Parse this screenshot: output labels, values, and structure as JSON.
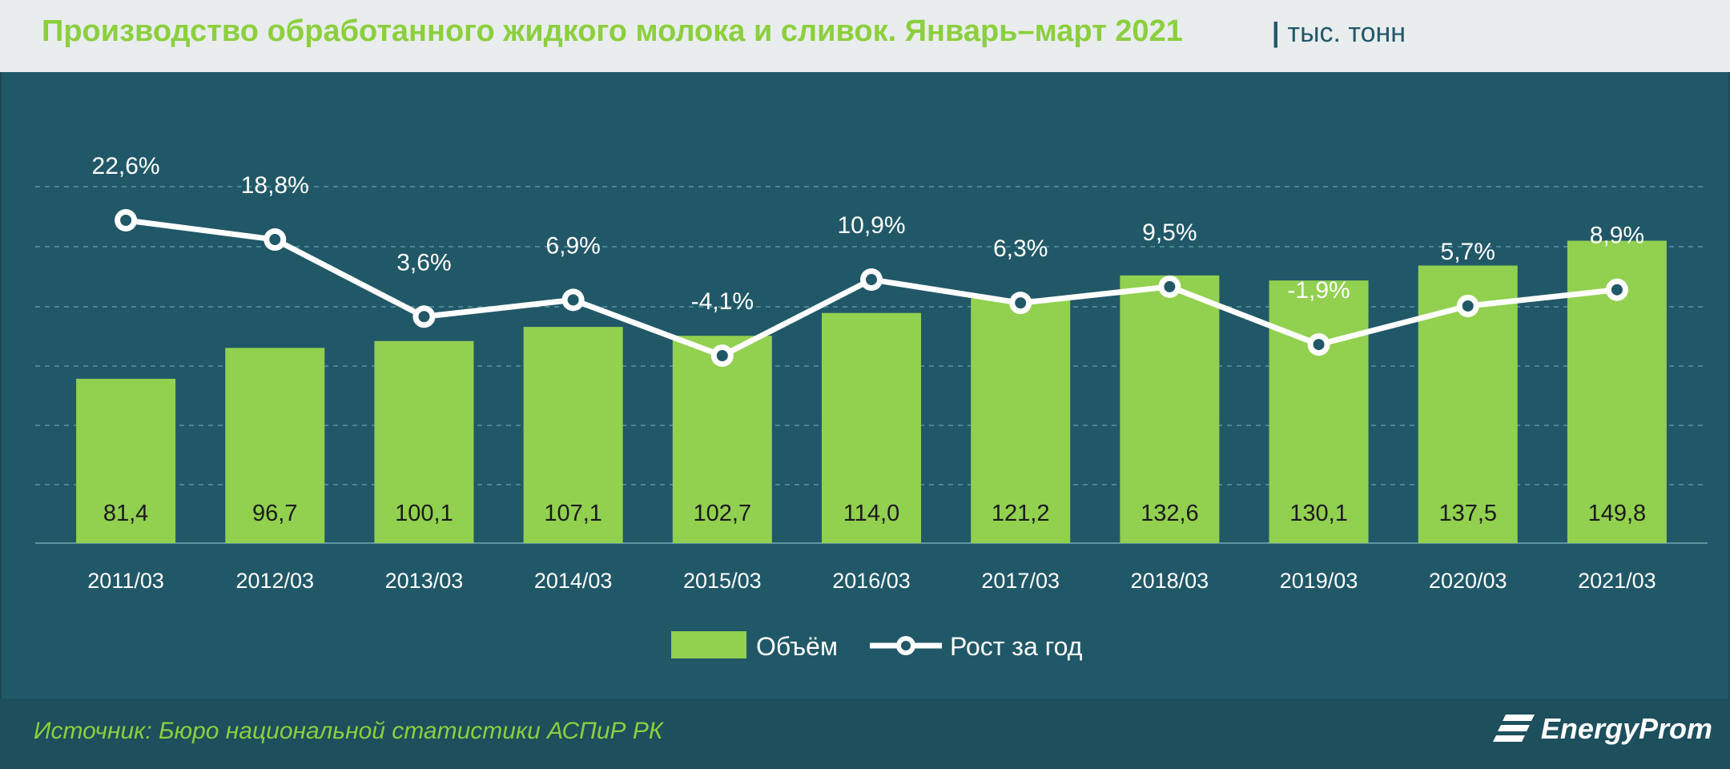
{
  "title": "Производство обработанного жидкого молока и сливок. Январь–март 2021",
  "unit_separator": "|",
  "unit": "тыс. тонн",
  "source": "Источник: Бюро национальной  статистики АСПиР РК",
  "brand": "EnergyProm",
  "colors": {
    "background": "#215868",
    "bar": "#92d050",
    "line": "#ffffff",
    "title": "#8ccf3e"
  },
  "chart_data": {
    "type": "bar",
    "categories": [
      "2011/03",
      "2012/03",
      "2013/03",
      "2014/03",
      "2015/03",
      "2016/03",
      "2017/03",
      "2018/03",
      "2019/03",
      "2020/03",
      "2021/03"
    ],
    "series": [
      {
        "name": "Объём",
        "type": "bar",
        "values": [
          81.4,
          96.7,
          100.1,
          107.1,
          102.7,
          114.0,
          121.2,
          132.6,
          130.1,
          137.5,
          149.8
        ],
        "labels": [
          "81,4",
          "96,7",
          "100,1",
          "107,1",
          "102,7",
          "114,0",
          "121,2",
          "132,6",
          "130,1",
          "137,5",
          "149,8"
        ]
      },
      {
        "name": "Рост за год",
        "type": "line",
        "values": [
          22.6,
          18.8,
          3.6,
          6.9,
          -4.1,
          10.9,
          6.3,
          9.5,
          -1.9,
          5.7,
          8.9
        ],
        "labels": [
          "22,6%",
          "18,8%",
          "3,6%",
          "6,9%",
          "-4,1%",
          "10,9%",
          "6,3%",
          "9,5%",
          "-1,9%",
          "5,7%",
          "8,9%"
        ]
      }
    ],
    "grid": true,
    "legend": "bottom-center"
  }
}
